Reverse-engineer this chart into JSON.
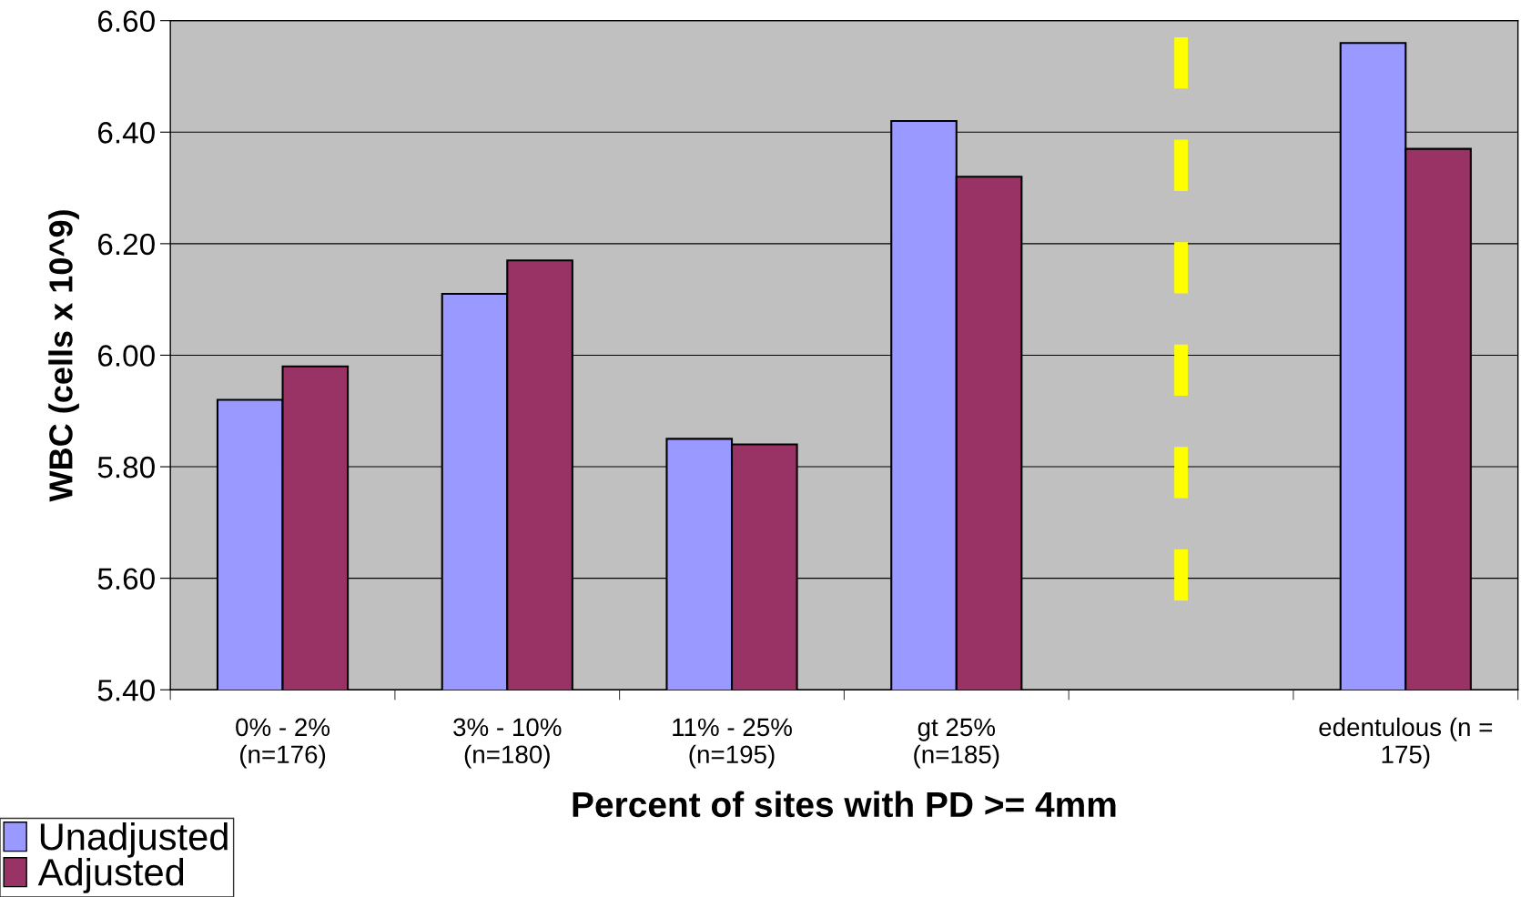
{
  "chart_data": {
    "type": "bar",
    "xlabel": "Percent of sites with PD >= 4mm",
    "ylabel": "WBC (cells x 10^9)",
    "categories": [
      "0% - 2%\n(n=176)",
      "3% - 10%\n(n=180)",
      "11% - 25%\n(n=195)",
      "gt 25%\n(n=185)",
      null,
      "edentulous (n =\n175)"
    ],
    "series": [
      {
        "name": "Unadjusted",
        "color": "#9999ff",
        "values": [
          5.92,
          6.11,
          5.85,
          6.42,
          null,
          6.56
        ]
      },
      {
        "name": "Adjusted",
        "color": "#993366",
        "values": [
          5.98,
          6.17,
          5.84,
          6.32,
          null,
          6.37
        ]
      }
    ],
    "ylim": [
      5.4,
      6.6
    ],
    "yticks": [
      {
        "value": 5.4,
        "label": "5.40"
      },
      {
        "value": 5.6,
        "label": "5.60"
      },
      {
        "value": 5.8,
        "label": "5.80"
      },
      {
        "value": 6.0,
        "label": "6.00"
      },
      {
        "value": 6.2,
        "label": "6.20"
      },
      {
        "value": 6.4,
        "label": "6.40"
      },
      {
        "value": 6.6,
        "label": "6.60"
      }
    ],
    "grid": "y",
    "legend": "bottom left"
  }
}
